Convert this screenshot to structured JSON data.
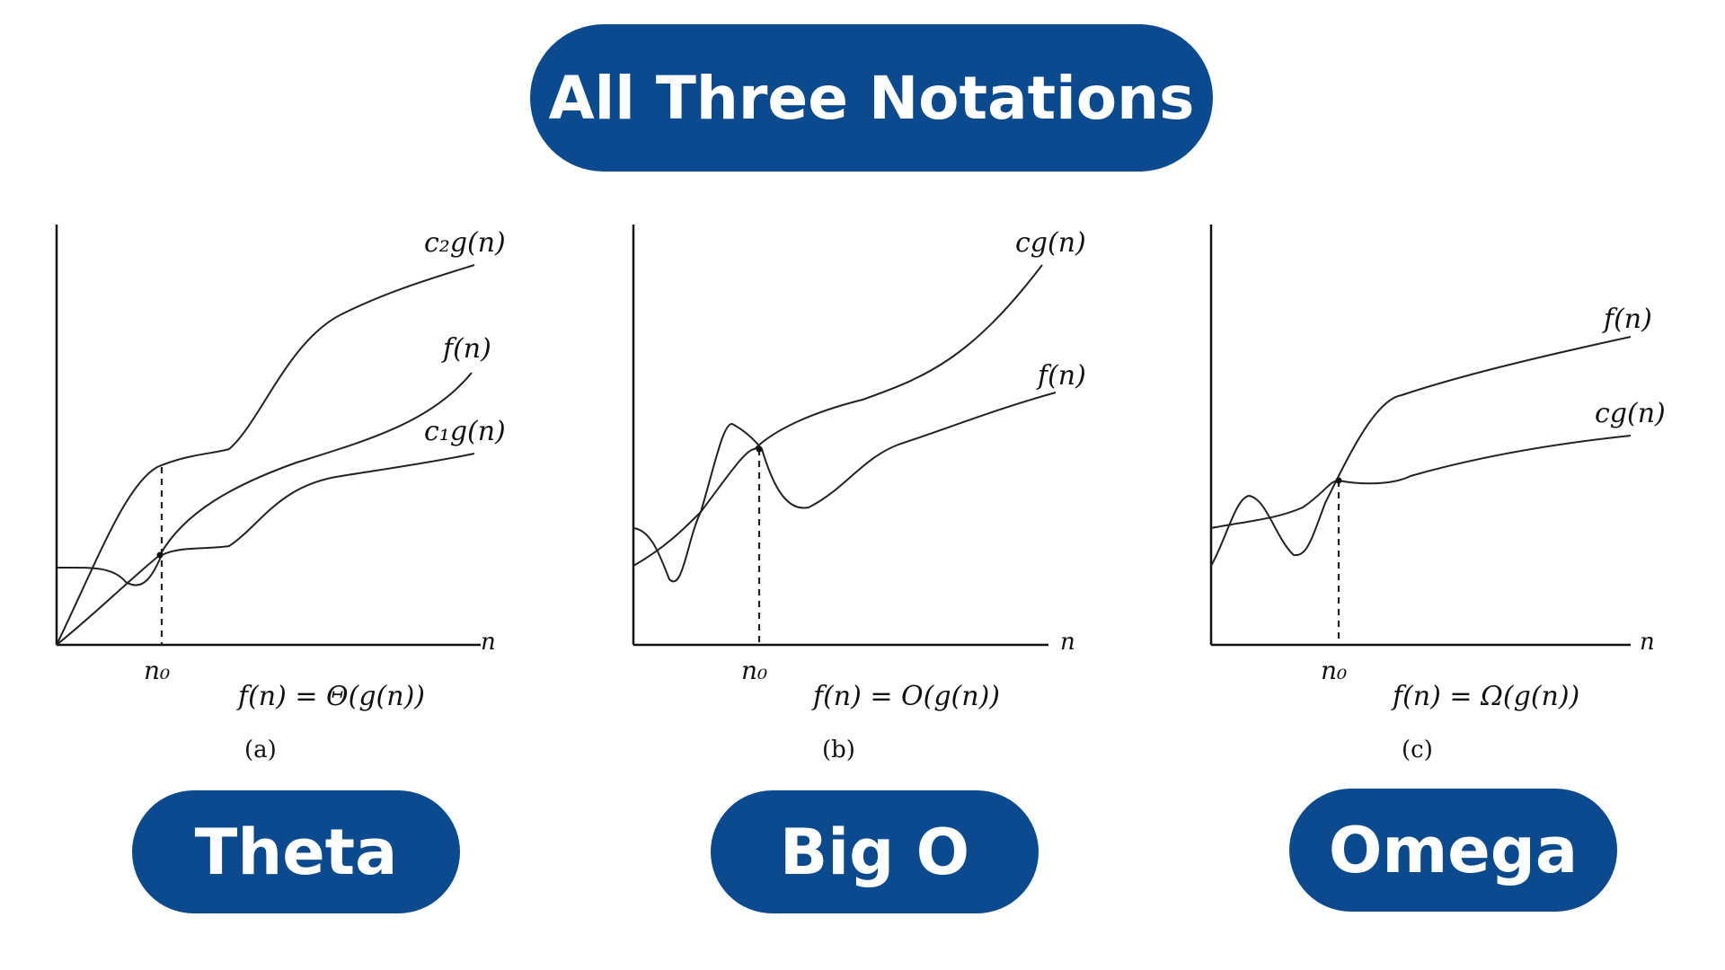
{
  "title": "All Three Notations",
  "panels": [
    {
      "pill": "Theta",
      "curves": [
        "c₂g(n)",
        "f(n)",
        "c₁g(n)"
      ],
      "x_axis": "n",
      "n0": "n₀",
      "equation": "f(n) = Θ(g(n))",
      "caption": "(a)"
    },
    {
      "pill": "Big O",
      "curves": [
        "cg(n)",
        "f(n)"
      ],
      "x_axis": "n",
      "n0": "n₀",
      "equation": "f(n) = O(g(n))",
      "caption": "(b)"
    },
    {
      "pill": "Omega",
      "curves": [
        "f(n)",
        "cg(n)"
      ],
      "x_axis": "n",
      "n0": "n₀",
      "equation": "f(n) = Ω(g(n))",
      "caption": "(c)"
    }
  ],
  "colors": {
    "pill_background": "#0b4a8f",
    "pill_text": "#ffffff",
    "line": "#222222"
  }
}
